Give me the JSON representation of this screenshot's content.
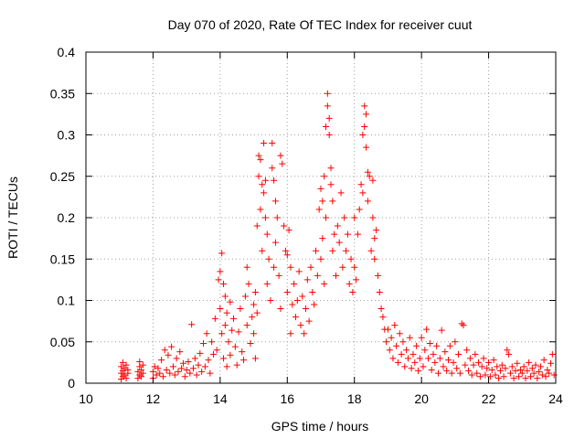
{
  "chart_data": {
    "type": "scatter",
    "title": "Day 070 of 2020, Rate Of TEC Index for receiver cuut",
    "xlabel": "GPS time / hours",
    "ylabel": "ROTI / TECUs",
    "xlim": [
      10,
      24
    ],
    "ylim": [
      0,
      0.4
    ],
    "x_ticks": [
      "10",
      "12",
      "14",
      "16",
      "18",
      "20",
      "22",
      "24"
    ],
    "y_ticks": [
      "0",
      "0.05",
      "0.1",
      "0.15",
      "0.2",
      "0.25",
      "0.3",
      "0.35",
      "0.4"
    ],
    "grid": true,
    "marker": "+",
    "color": "#ff0000",
    "points": [
      [
        11.05,
        0.005
      ],
      [
        11.05,
        0.012
      ],
      [
        11.05,
        0.02
      ],
      [
        11.1,
        0.008
      ],
      [
        11.1,
        0.015
      ],
      [
        11.1,
        0.025
      ],
      [
        11.15,
        0.01
      ],
      [
        11.15,
        0.018
      ],
      [
        11.2,
        0.006
      ],
      [
        11.2,
        0.022
      ],
      [
        11.25,
        0.012
      ],
      [
        11.25,
        0.016
      ],
      [
        11.55,
        0.006
      ],
      [
        11.55,
        0.014
      ],
      [
        11.6,
        0.01
      ],
      [
        11.6,
        0.02
      ],
      [
        11.6,
        0.026
      ],
      [
        11.65,
        0.008
      ],
      [
        11.65,
        0.016
      ],
      [
        11.7,
        0.012
      ],
      [
        11.7,
        0.022
      ],
      [
        12.0,
        0.006
      ],
      [
        12.0,
        0.014
      ],
      [
        12.05,
        0.02
      ],
      [
        12.1,
        0.01
      ],
      [
        12.15,
        0.018
      ],
      [
        12.2,
        0.012
      ],
      [
        12.25,
        0.028
      ],
      [
        12.3,
        0.008
      ],
      [
        12.35,
        0.04
      ],
      [
        12.4,
        0.016
      ],
      [
        12.45,
        0.034
      ],
      [
        12.5,
        0.012
      ],
      [
        12.55,
        0.044
      ],
      [
        12.6,
        0.02
      ],
      [
        12.65,
        0.01
      ],
      [
        12.7,
        0.03
      ],
      [
        12.75,
        0.014
      ],
      [
        12.8,
        0.038
      ],
      [
        12.85,
        0.018
      ],
      [
        12.9,
        0.024
      ],
      [
        12.95,
        0.008
      ],
      [
        13.0,
        0.016
      ],
      [
        13.05,
        0.026
      ],
      [
        13.1,
        0.012
      ],
      [
        13.15,
        0.071
      ],
      [
        13.2,
        0.018
      ],
      [
        13.25,
        0.03
      ],
      [
        13.3,
        0.01
      ],
      [
        13.35,
        0.022
      ],
      [
        13.4,
        0.036
      ],
      [
        13.45,
        0.014
      ],
      [
        13.5,
        0.048
      ],
      [
        13.55,
        0.02
      ],
      [
        13.6,
        0.06
      ],
      [
        13.65,
        0.028
      ],
      [
        13.7,
        0.012
      ],
      [
        13.75,
        0.05
      ],
      [
        13.8,
        0.035
      ],
      [
        13.85,
        0.078
      ],
      [
        13.9,
        0.04
      ],
      [
        13.95,
        0.125
      ],
      [
        14.0,
        0.135
      ],
      [
        14.0,
        0.09
      ],
      [
        14.05,
        0.157
      ],
      [
        14.05,
        0.06
      ],
      [
        14.1,
        0.12
      ],
      [
        14.1,
        0.03
      ],
      [
        14.15,
        0.105
      ],
      [
        14.15,
        0.07
      ],
      [
        14.2,
        0.085
      ],
      [
        14.2,
        0.02
      ],
      [
        14.25,
        0.05
      ],
      [
        14.3,
        0.098
      ],
      [
        14.3,
        0.034
      ],
      [
        14.35,
        0.064
      ],
      [
        14.4,
        0.078
      ],
      [
        14.45,
        0.044
      ],
      [
        14.5,
        0.022
      ],
      [
        14.55,
        0.062
      ],
      [
        14.6,
        0.09
      ],
      [
        14.65,
        0.038
      ],
      [
        14.7,
        0.028
      ],
      [
        14.75,
        0.105
      ],
      [
        14.8,
        0.14
      ],
      [
        14.8,
        0.07
      ],
      [
        14.85,
        0.12
      ],
      [
        14.9,
        0.048
      ],
      [
        14.95,
        0.08
      ],
      [
        15.0,
        0.095
      ],
      [
        15.0,
        0.06
      ],
      [
        15.05,
        0.11
      ],
      [
        15.05,
        0.03
      ],
      [
        15.1,
        0.19
      ],
      [
        15.1,
        0.085
      ],
      [
        15.15,
        0.275
      ],
      [
        15.15,
        0.25
      ],
      [
        15.2,
        0.27
      ],
      [
        15.2,
        0.21
      ],
      [
        15.25,
        0.24
      ],
      [
        15.25,
        0.16
      ],
      [
        15.3,
        0.29
      ],
      [
        15.3,
        0.23
      ],
      [
        15.35,
        0.245
      ],
      [
        15.35,
        0.2
      ],
      [
        15.4,
        0.18
      ],
      [
        15.4,
        0.12
      ],
      [
        15.45,
        0.15
      ],
      [
        15.5,
        0.1
      ],
      [
        15.55,
        0.29
      ],
      [
        15.55,
        0.26
      ],
      [
        15.6,
        0.245
      ],
      [
        15.6,
        0.14
      ],
      [
        15.65,
        0.22
      ],
      [
        15.65,
        0.17
      ],
      [
        15.7,
        0.2
      ],
      [
        15.75,
        0.13
      ],
      [
        15.8,
        0.275
      ],
      [
        15.8,
        0.09
      ],
      [
        15.85,
        0.265
      ],
      [
        15.9,
        0.19
      ],
      [
        15.95,
        0.16
      ],
      [
        16.0,
        0.155
      ],
      [
        16.0,
        0.11
      ],
      [
        16.05,
        0.185
      ],
      [
        16.1,
        0.14
      ],
      [
        16.1,
        0.06
      ],
      [
        16.15,
        0.095
      ],
      [
        16.2,
        0.12
      ],
      [
        16.25,
        0.08
      ],
      [
        16.3,
        0.1
      ],
      [
        16.35,
        0.135
      ],
      [
        16.4,
        0.07
      ],
      [
        16.45,
        0.105
      ],
      [
        16.5,
        0.06
      ],
      [
        16.55,
        0.09
      ],
      [
        16.6,
        0.125
      ],
      [
        16.65,
        0.075
      ],
      [
        16.7,
        0.14
      ],
      [
        16.75,
        0.11
      ],
      [
        16.8,
        0.095
      ],
      [
        16.85,
        0.16
      ],
      [
        16.9,
        0.13
      ],
      [
        16.95,
        0.21
      ],
      [
        17.0,
        0.235
      ],
      [
        17.0,
        0.15
      ],
      [
        17.05,
        0.22
      ],
      [
        17.05,
        0.175
      ],
      [
        17.1,
        0.25
      ],
      [
        17.1,
        0.12
      ],
      [
        17.15,
        0.2
      ],
      [
        17.15,
        0.31
      ],
      [
        17.2,
        0.35
      ],
      [
        17.2,
        0.335
      ],
      [
        17.25,
        0.32
      ],
      [
        17.25,
        0.3
      ],
      [
        17.3,
        0.26
      ],
      [
        17.3,
        0.24
      ],
      [
        17.35,
        0.22
      ],
      [
        17.35,
        0.16
      ],
      [
        17.4,
        0.18
      ],
      [
        17.45,
        0.13
      ],
      [
        17.5,
        0.19
      ],
      [
        17.55,
        0.17
      ],
      [
        17.6,
        0.23
      ],
      [
        17.65,
        0.14
      ],
      [
        17.7,
        0.2
      ],
      [
        17.75,
        0.16
      ],
      [
        17.8,
        0.18
      ],
      [
        17.85,
        0.12
      ],
      [
        17.9,
        0.15
      ],
      [
        17.95,
        0.11
      ],
      [
        18.0,
        0.2
      ],
      [
        18.0,
        0.14
      ],
      [
        18.05,
        0.125
      ],
      [
        18.1,
        0.18
      ],
      [
        18.15,
        0.21
      ],
      [
        18.2,
        0.24
      ],
      [
        18.25,
        0.3
      ],
      [
        18.25,
        0.23
      ],
      [
        18.3,
        0.335
      ],
      [
        18.3,
        0.31
      ],
      [
        18.35,
        0.325
      ],
      [
        18.35,
        0.285
      ],
      [
        18.4,
        0.255
      ],
      [
        18.4,
        0.22
      ],
      [
        18.45,
        0.25
      ],
      [
        18.5,
        0.16
      ],
      [
        18.55,
        0.245
      ],
      [
        18.55,
        0.2
      ],
      [
        18.6,
        0.175
      ],
      [
        18.6,
        0.15
      ],
      [
        18.65,
        0.185
      ],
      [
        18.7,
        0.13
      ],
      [
        18.75,
        0.11
      ],
      [
        18.8,
        0.09
      ],
      [
        18.85,
        0.08
      ],
      [
        18.9,
        0.065
      ],
      [
        18.95,
        0.05
      ],
      [
        19.0,
        0.065
      ],
      [
        19.05,
        0.04
      ],
      [
        19.1,
        0.055
      ],
      [
        19.15,
        0.03
      ],
      [
        19.2,
        0.07
      ],
      [
        19.25,
        0.045
      ],
      [
        19.3,
        0.025
      ],
      [
        19.35,
        0.06
      ],
      [
        19.4,
        0.035
      ],
      [
        19.45,
        0.05
      ],
      [
        19.5,
        0.02
      ],
      [
        19.55,
        0.04
      ],
      [
        19.6,
        0.03
      ],
      [
        19.65,
        0.055
      ],
      [
        19.7,
        0.018
      ],
      [
        19.75,
        0.035
      ],
      [
        19.8,
        0.025
      ],
      [
        19.85,
        0.045
      ],
      [
        19.9,
        0.015
      ],
      [
        19.95,
        0.03
      ],
      [
        20.0,
        0.055
      ],
      [
        20.05,
        0.02
      ],
      [
        20.1,
        0.04
      ],
      [
        20.15,
        0.065
      ],
      [
        20.2,
        0.03
      ],
      [
        20.25,
        0.048
      ],
      [
        20.3,
        0.016
      ],
      [
        20.35,
        0.035
      ],
      [
        20.4,
        0.025
      ],
      [
        20.45,
        0.045
      ],
      [
        20.5,
        0.012
      ],
      [
        20.55,
        0.03
      ],
      [
        20.6,
        0.064
      ],
      [
        20.65,
        0.02
      ],
      [
        20.7,
        0.038
      ],
      [
        20.75,
        0.015
      ],
      [
        20.8,
        0.028
      ],
      [
        20.85,
        0.045
      ],
      [
        20.9,
        0.012
      ],
      [
        20.95,
        0.025
      ],
      [
        21.0,
        0.05
      ],
      [
        21.05,
        0.018
      ],
      [
        21.1,
        0.035
      ],
      [
        21.15,
        0.012
      ],
      [
        21.2,
        0.072
      ],
      [
        21.25,
        0.07
      ],
      [
        21.3,
        0.022
      ],
      [
        21.35,
        0.04
      ],
      [
        21.4,
        0.015
      ],
      [
        21.45,
        0.03
      ],
      [
        21.5,
        0.01
      ],
      [
        21.55,
        0.022
      ],
      [
        21.6,
        0.035
      ],
      [
        21.65,
        0.012
      ],
      [
        21.7,
        0.025
      ],
      [
        21.75,
        0.008
      ],
      [
        21.8,
        0.02
      ],
      [
        21.85,
        0.03
      ],
      [
        21.9,
        0.01
      ],
      [
        21.95,
        0.018
      ],
      [
        22.0,
        0.025
      ],
      [
        22.05,
        0.008
      ],
      [
        22.1,
        0.016
      ],
      [
        22.15,
        0.028
      ],
      [
        22.2,
        0.01
      ],
      [
        22.25,
        0.02
      ],
      [
        22.3,
        0.006
      ],
      [
        22.35,
        0.015
      ],
      [
        22.4,
        0.022
      ],
      [
        22.45,
        0.008
      ],
      [
        22.5,
        0.018
      ],
      [
        22.55,
        0.04
      ],
      [
        22.6,
        0.035
      ],
      [
        22.65,
        0.012
      ],
      [
        22.7,
        0.02
      ],
      [
        22.75,
        0.006
      ],
      [
        22.8,
        0.015
      ],
      [
        22.85,
        0.024
      ],
      [
        22.9,
        0.008
      ],
      [
        22.95,
        0.016
      ],
      [
        23.0,
        0.012
      ],
      [
        23.05,
        0.02
      ],
      [
        23.1,
        0.006
      ],
      [
        23.15,
        0.015
      ],
      [
        23.2,
        0.025
      ],
      [
        23.25,
        0.008
      ],
      [
        23.3,
        0.018
      ],
      [
        23.35,
        0.012
      ],
      [
        23.4,
        0.022
      ],
      [
        23.45,
        0.006
      ],
      [
        23.5,
        0.014
      ],
      [
        23.55,
        0.02
      ],
      [
        23.6,
        0.01
      ],
      [
        23.65,
        0.028
      ],
      [
        23.7,
        0.008
      ],
      [
        23.75,
        0.016
      ],
      [
        23.8,
        0.012
      ],
      [
        23.85,
        0.024
      ],
      [
        23.9,
        0.035
      ],
      [
        23.95,
        0.01
      ]
    ]
  }
}
